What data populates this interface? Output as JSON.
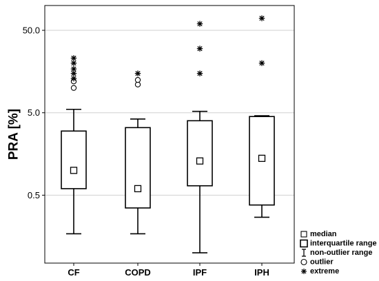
{
  "chart_data": {
    "type": "box",
    "ylabel": "PRA [%]",
    "yscale": "log",
    "ylim": [
      0.075,
      100
    ],
    "yticks": [
      0.5,
      5.0,
      50.0
    ],
    "ytick_labels": [
      "0.5",
      "5.0",
      "50.0"
    ],
    "grid": true,
    "categories": [
      "CF",
      "COPD",
      "IPF",
      "IPH"
    ],
    "series": [
      {
        "category": "CF",
        "median": 1.0,
        "q1": 0.6,
        "q3": 3.0,
        "whisker_low": 0.17,
        "whisker_high": 5.5,
        "outliers": [
          10,
          12
        ],
        "extremes": [
          13,
          15,
          17,
          20,
          23
        ]
      },
      {
        "category": "COPD",
        "median": 0.6,
        "q1": 0.35,
        "q3": 3.3,
        "whisker_low": 0.17,
        "whisker_high": 4.2,
        "outliers": [
          11,
          12.5
        ],
        "extremes": [
          15
        ]
      },
      {
        "category": "IPF",
        "median": 1.3,
        "q1": 0.65,
        "q3": 4.0,
        "whisker_low": 0.1,
        "whisker_high": 5.2,
        "outliers": [],
        "extremes": [
          15,
          30,
          60
        ]
      },
      {
        "category": "IPH",
        "median": 1.4,
        "q1": 0.38,
        "q3": 4.5,
        "whisker_low": 0.27,
        "whisker_high": 4.6,
        "outliers": [],
        "extremes": [
          20,
          70
        ]
      }
    ],
    "legend": {
      "position": "bottom-right",
      "items": [
        {
          "symbol": "small-square",
          "label": "median"
        },
        {
          "symbol": "large-square",
          "label": "interquartile range"
        },
        {
          "symbol": "whisker",
          "label": "non-outlier range"
        },
        {
          "symbol": "circle",
          "label": "outlier"
        },
        {
          "symbol": "asterisk",
          "label": "extreme"
        }
      ]
    }
  }
}
